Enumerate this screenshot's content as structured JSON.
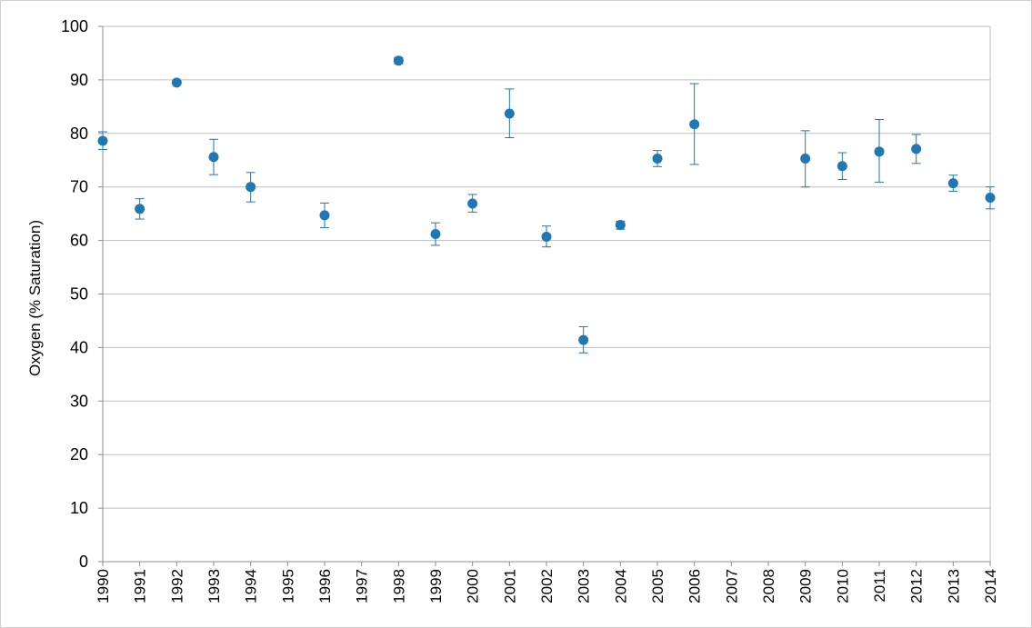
{
  "chart_data": {
    "type": "scatter",
    "title": "",
    "xlabel": "",
    "ylabel": "Oxygen (% Saturation)",
    "ylim": [
      0,
      100
    ],
    "yticks": [
      0,
      10,
      20,
      30,
      40,
      50,
      60,
      70,
      80,
      90,
      100
    ],
    "grid": true,
    "categories": [
      "1990",
      "1991",
      "1992",
      "1993",
      "1994",
      "1995",
      "1996",
      "1997",
      "1998",
      "1999",
      "2000",
      "2001",
      "2002",
      "2003",
      "2004",
      "2005",
      "2006",
      "2007",
      "2008",
      "2009",
      "2010",
      "2011",
      "2012",
      "2013",
      "2014"
    ],
    "series": [
      {
        "color": "#1f77b4",
        "points": [
          {
            "x": "1990",
            "y": 78.6,
            "low": 77.0,
            "high": 80.3
          },
          {
            "x": "1991",
            "y": 65.9,
            "low": 64.0,
            "high": 67.8
          },
          {
            "x": "1992",
            "y": 89.5,
            "low": 89.2,
            "high": 89.8
          },
          {
            "x": "1993",
            "y": 75.6,
            "low": 72.3,
            "high": 78.9
          },
          {
            "x": "1994",
            "y": 70.0,
            "low": 67.2,
            "high": 72.7
          },
          {
            "x": "1996",
            "y": 64.7,
            "low": 62.4,
            "high": 67.0
          },
          {
            "x": "1998",
            "y": 93.6,
            "low": 93.0,
            "high": 94.2
          },
          {
            "x": "1999",
            "y": 61.2,
            "low": 59.1,
            "high": 63.3
          },
          {
            "x": "2000",
            "y": 66.9,
            "low": 65.3,
            "high": 68.6
          },
          {
            "x": "2001",
            "y": 83.7,
            "low": 79.2,
            "high": 88.3
          },
          {
            "x": "2002",
            "y": 60.7,
            "low": 58.8,
            "high": 62.7
          },
          {
            "x": "2003",
            "y": 41.4,
            "low": 39.0,
            "high": 43.9
          },
          {
            "x": "2004",
            "y": 62.9,
            "low": 62.1,
            "high": 63.6
          },
          {
            "x": "2005",
            "y": 75.3,
            "low": 73.8,
            "high": 76.8
          },
          {
            "x": "2006",
            "y": 81.7,
            "low": 74.2,
            "high": 89.3
          },
          {
            "x": "2009",
            "y": 75.3,
            "low": 70.0,
            "high": 80.5
          },
          {
            "x": "2010",
            "y": 73.9,
            "low": 71.4,
            "high": 76.4
          },
          {
            "x": "2011",
            "y": 76.6,
            "low": 70.9,
            "high": 82.6
          },
          {
            "x": "2012",
            "y": 77.1,
            "low": 74.4,
            "high": 79.8
          },
          {
            "x": "2013",
            "y": 70.7,
            "low": 69.2,
            "high": 72.2
          },
          {
            "x": "2014",
            "y": 68.0,
            "low": 65.9,
            "high": 70.0
          }
        ]
      }
    ]
  }
}
